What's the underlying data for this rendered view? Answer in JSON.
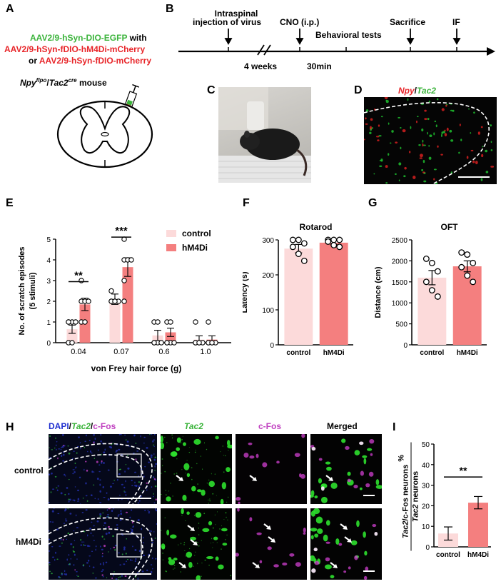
{
  "panels": {
    "A": "A",
    "B": "B",
    "C": "C",
    "D": "D",
    "E": "E",
    "F": "F",
    "G": "G",
    "H": "H",
    "I": "I"
  },
  "panelA": {
    "line1": "AAV2/9-hSyn-DIO-EGFP",
    "line1b": " with",
    "line2": "AAV2/9-hSyn-fDIO-hM4Di-mCherry",
    "line3a": "or ",
    "line3b": "AAV2/9-hSyn-fDIO-mCherry",
    "mouse_npy": "Npy",
    "mouse_flpo": "flpo",
    "mouse_slash": "/",
    "mouse_tac2": "Tac2",
    "mouse_cre": "cre",
    "mouse_word": " mouse"
  },
  "panelB": {
    "intraspinal1": "Intraspinal",
    "intraspinal2": "injection of virus",
    "cno": "CNO (i.p.)",
    "behavior": "Behavioral tests",
    "sacrifice": "Sacrifice",
    "if": "IF",
    "weeks": "4 weeks",
    "min": "30min"
  },
  "panelD": {
    "npy": "Npy",
    "slash": "/",
    "tac2": "Tac2"
  },
  "panelE": {
    "ylabel1": "No. of scratch episodes",
    "ylabel2": "(5 stimuli)",
    "xlabel": "von Frey hair force (g)",
    "legend": [
      "control",
      "hM4Di"
    ],
    "sig": [
      "**",
      "***"
    ]
  },
  "panelF": {
    "title": "Rotarod",
    "ylabel": "Latency (s)"
  },
  "panelG": {
    "title": "OFT",
    "ylabel": "Distance (cm)"
  },
  "panelH": {
    "col1_dapi": "DAPI",
    "col1_s1": "/",
    "col1_tac2": "Tac2",
    "col1_s2": "/",
    "col1_cfos": "c-Fos",
    "col2": "Tac2",
    "col3": "c-Fos",
    "col4": "Merged",
    "row1": "control",
    "row2": "hM4Di"
  },
  "panelI": {
    "ylabel_num_tac2": "Tac2",
    "ylabel_num_rest": "/c-Fos neurons",
    "ylabel_den": "Tac2",
    "ylabel_den_rest": " neurons",
    "ylabel_pct": "%",
    "sig": "**"
  },
  "colors": {
    "control": "#fcdada",
    "hm4di": "#f47f7f",
    "axis": "#000000"
  },
  "chart_data": [
    {
      "type": "bar",
      "panel": "E",
      "categories": [
        "0.04",
        "0.07",
        "0.6",
        "1.0"
      ],
      "series": [
        {
          "name": "control",
          "values": [
            0.65,
            2.1,
            0.35,
            0.15
          ],
          "errors": [
            0.2,
            0.25,
            0.25,
            0.18
          ],
          "points": [
            [
              1,
              1,
              0,
              0,
              1,
              1
            ],
            [
              2,
              2,
              2,
              2,
              2,
              2.5
            ],
            [
              0,
              0,
              0,
              0,
              1,
              1
            ],
            [
              0,
              0,
              0,
              0,
              0,
              1
            ]
          ]
        },
        {
          "name": "hM4Di",
          "values": [
            1.85,
            3.65,
            0.5,
            0.15
          ],
          "errors": [
            0.3,
            0.45,
            0.2,
            0.18
          ],
          "points": [
            [
              1,
              1,
              2,
              2,
              2,
              3
            ],
            [
              2,
              3,
              4,
              4,
              4,
              5
            ],
            [
              0,
              0,
              0,
              0,
              1,
              1
            ],
            [
              0,
              0,
              0,
              0,
              0,
              1
            ]
          ]
        }
      ],
      "xlabel": "von Frey hair force (g)",
      "ylabel": "No. of scratch episodes (5 stimuli)",
      "ylim": [
        0,
        5
      ],
      "yticks": [
        "0",
        "1",
        "2",
        "3",
        "4",
        "5"
      ]
    },
    {
      "type": "bar",
      "panel": "F",
      "title": "Rotarod",
      "categories": [
        "control",
        "hM4Di"
      ],
      "values": [
        275,
        292
      ],
      "errors": [
        12,
        6
      ],
      "points": [
        [
          300,
          300,
          290,
          280,
          260,
          240
        ],
        [
          300,
          300,
          300,
          295,
          285,
          280
        ]
      ],
      "ylabel": "Latency (s)",
      "ylim": [
        0,
        300
      ],
      "yticks": [
        "0",
        "100",
        "200",
        "300"
      ]
    },
    {
      "type": "bar",
      "panel": "G",
      "title": "OFT",
      "categories": [
        "control",
        "hM4Di"
      ],
      "values": [
        1600,
        1870
      ],
      "errors": [
        170,
        130
      ],
      "points": [
        [
          2050,
          1950,
          1750,
          1500,
          1300,
          1150
        ],
        [
          2200,
          2150,
          1950,
          1850,
          1650,
          1500
        ]
      ],
      "ylabel": "Distance (cm)",
      "ylim": [
        0,
        2500
      ],
      "yticks": [
        "0",
        "500",
        "1000",
        "1500",
        "2000",
        "2500"
      ]
    },
    {
      "type": "bar",
      "panel": "I",
      "categories": [
        "control",
        "hM4Di"
      ],
      "values": [
        6.5,
        21.5
      ],
      "errors": [
        3.2,
        3.0
      ],
      "ylim": [
        0,
        50
      ],
      "yticks": [
        "0",
        "10",
        "20",
        "30",
        "40",
        "50"
      ]
    }
  ]
}
